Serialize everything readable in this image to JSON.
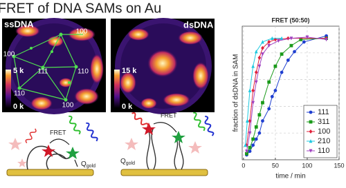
{
  "title": "FRET of DNA SAMs on Au",
  "panels": [
    {
      "label": "ssDNA",
      "scale_max": "5 k",
      "scale_min": "0 k",
      "facets": [
        "100",
        "100",
        "111",
        "110",
        "110",
        "100"
      ]
    },
    {
      "label": "dsDNA",
      "scale_max": "15 k",
      "scale_min": "0 k"
    }
  ],
  "schematic": {
    "fret_left": "FRET",
    "q_left": "Q",
    "q_left_sub": "gold",
    "fret_right": "FRET",
    "q_right": "Q",
    "q_right_sub": "gold"
  },
  "chart_data": {
    "type": "line",
    "title": "FRET (50:50)",
    "x_label": "time / min",
    "y_label": "fraction of dsDNA in SAM",
    "xlim": [
      -2,
      150
    ],
    "xticks": [
      0,
      50,
      100,
      150
    ],
    "ylim": [
      -0.02,
      1.08
    ],
    "grid": true,
    "legend": "lower right",
    "series": [
      {
        "name": "111",
        "color": "#1f3fd0",
        "marker": "circle",
        "x": [
          5,
          10,
          15,
          20,
          25,
          30,
          40,
          45,
          50,
          60,
          70,
          80,
          95,
          130
        ],
        "values": [
          0.02,
          0.05,
          0.1,
          0.15,
          0.2,
          0.3,
          0.4,
          0.5,
          0.55,
          0.7,
          0.8,
          0.87,
          0.95,
          1.0
        ]
      },
      {
        "name": "311",
        "color": "#1a9a1a",
        "marker": "square",
        "x": [
          5,
          10,
          15,
          20,
          25,
          30,
          40,
          50,
          60,
          75,
          90,
          130
        ],
        "values": [
          0.03,
          0.08,
          0.15,
          0.25,
          0.35,
          0.45,
          0.62,
          0.75,
          0.85,
          0.92,
          0.97,
          0.98
        ]
      },
      {
        "name": "100",
        "color": "#e0203a",
        "marker": "diamond",
        "x": [
          5,
          10,
          15,
          20,
          25,
          30,
          40,
          50,
          70,
          130
        ],
        "values": [
          0.1,
          0.3,
          0.55,
          0.7,
          0.82,
          0.9,
          0.95,
          0.97,
          0.98,
          0.98
        ]
      },
      {
        "name": "210",
        "color": "#1ec8e0",
        "marker": "triangle",
        "x": [
          3,
          6,
          10,
          15,
          20,
          30,
          45,
          60
        ],
        "values": [
          0.1,
          0.3,
          0.55,
          0.75,
          0.87,
          0.95,
          0.98,
          0.98
        ]
      },
      {
        "name": "110",
        "color": "#a040c0",
        "marker": "triangle-down",
        "x": [
          5,
          10,
          15,
          20,
          25,
          30,
          40,
          55,
          75,
          100,
          130
        ],
        "values": [
          0.05,
          0.2,
          0.45,
          0.62,
          0.75,
          0.85,
          0.92,
          0.96,
          0.98,
          0.99,
          0.97
        ]
      }
    ]
  }
}
